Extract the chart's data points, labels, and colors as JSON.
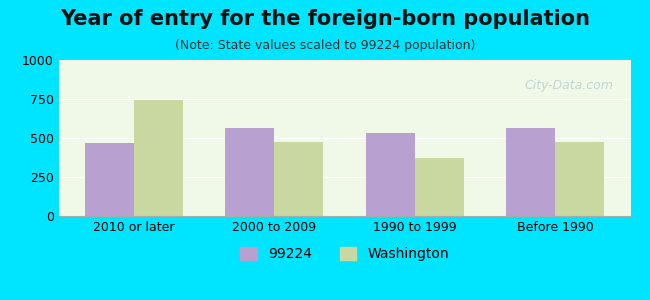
{
  "title": "Year of entry for the foreign-born population",
  "subtitle": "(Note: State values scaled to 99224 population)",
  "categories": [
    "2010 or later",
    "2000 to 2009",
    "1990 to 1999",
    "Before 1990"
  ],
  "series": {
    "99224": [
      470,
      565,
      530,
      565
    ],
    "Washington": [
      745,
      475,
      370,
      475
    ]
  },
  "bar_color_99224": "#b8a0d0",
  "bar_color_washington": "#c8d8a0",
  "background_outer": "#00e5ff",
  "background_inner": "#f0f8e8",
  "ylim": [
    0,
    1000
  ],
  "yticks": [
    0,
    250,
    500,
    750,
    1000
  ],
  "legend_labels": [
    "99224",
    "Washington"
  ],
  "bar_width": 0.35,
  "title_fontsize": 15,
  "subtitle_fontsize": 9,
  "tick_fontsize": 9,
  "legend_fontsize": 10
}
